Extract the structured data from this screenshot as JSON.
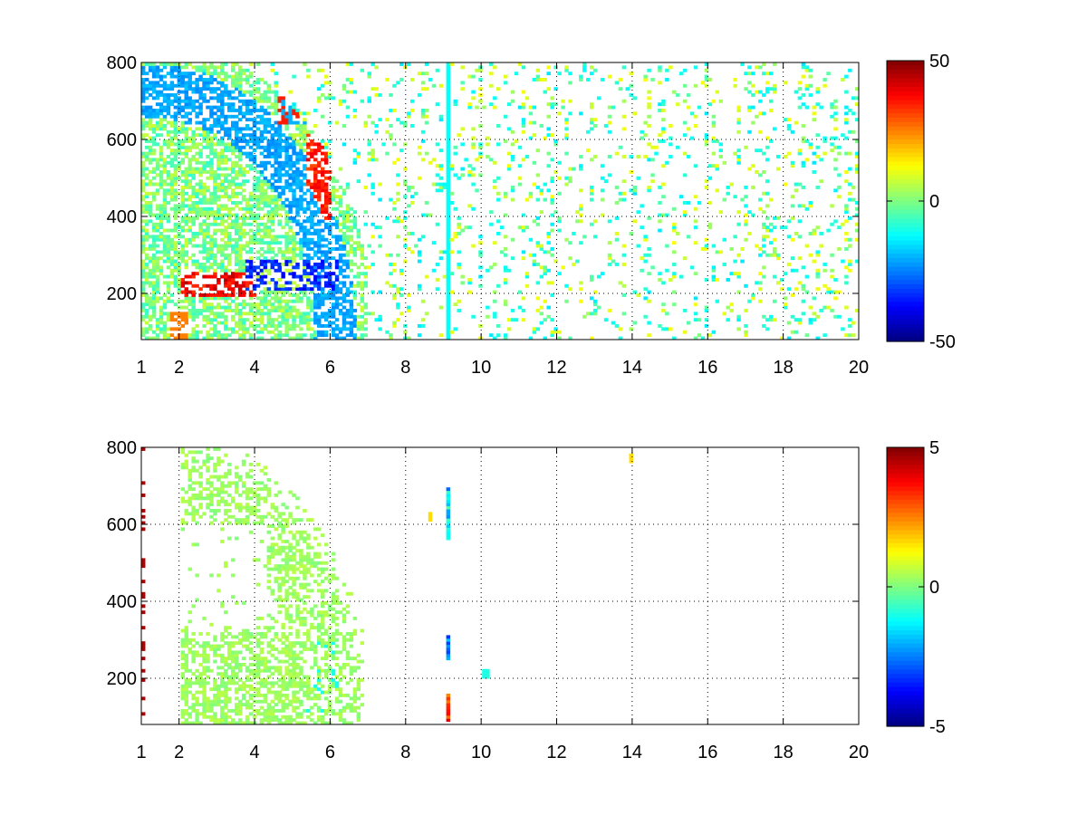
{
  "chart_data": [
    {
      "type": "heatmap",
      "panel": "top",
      "title": "",
      "xlabel": "",
      "ylabel": "",
      "xlim": [
        1,
        20
      ],
      "ylim": [
        80,
        800
      ],
      "xticks": [
        1,
        2,
        4,
        6,
        8,
        10,
        12,
        14,
        16,
        18,
        20
      ],
      "yticks": [
        200,
        400,
        600,
        800
      ],
      "grid": true,
      "colormap": "jet",
      "colorbar": {
        "range": [
          -50,
          50
        ],
        "ticks": [
          50,
          0,
          -50
        ]
      },
      "features": {
        "arc_center": [
          1.3,
          95
        ],
        "arc_radii": [
          560,
          700,
          760
        ],
        "hot_band": {
          "x": [
            2.0,
            4.0
          ],
          "y": [
            190,
            260
          ],
          "value": 45
        },
        "cold_band": {
          "x": [
            3.8,
            6.2
          ],
          "y": [
            210,
            290
          ],
          "value": -40
        },
        "vertical_stripe": {
          "x": 9.15,
          "value": -12
        },
        "sparse_region": {
          "x": [
            7.0,
            20.0
          ],
          "fill": 0.07,
          "value_range": [
            -15,
            12
          ]
        }
      }
    },
    {
      "type": "heatmap",
      "panel": "bottom",
      "title": "",
      "xlabel": "",
      "ylabel": "",
      "xlim": [
        1,
        20
      ],
      "ylim": [
        80,
        800
      ],
      "xticks": [
        1,
        2,
        4,
        6,
        8,
        10,
        12,
        14,
        16,
        18,
        20
      ],
      "yticks": [
        200,
        400,
        600,
        800
      ],
      "grid": true,
      "colormap": "jet",
      "colorbar": {
        "range": [
          -5,
          5
        ],
        "ticks": [
          5,
          0,
          -5
        ]
      },
      "features": {
        "arc_center": [
          1.3,
          95
        ],
        "arc_radius_max": 760,
        "typical_value": 0.3,
        "vertical_stripe": {
          "x": 9.15,
          "segments": [
            [
              560,
              700,
              -1.5
            ],
            [
              250,
              310,
              -2.2
            ],
            [
              90,
              160,
              3.0
            ]
          ]
        },
        "spots": [
          [
            8.65,
            620,
            1.6
          ],
          [
            13.95,
            775,
            1.6
          ],
          [
            10.1,
            210,
            -1.0
          ]
        ]
      }
    }
  ]
}
